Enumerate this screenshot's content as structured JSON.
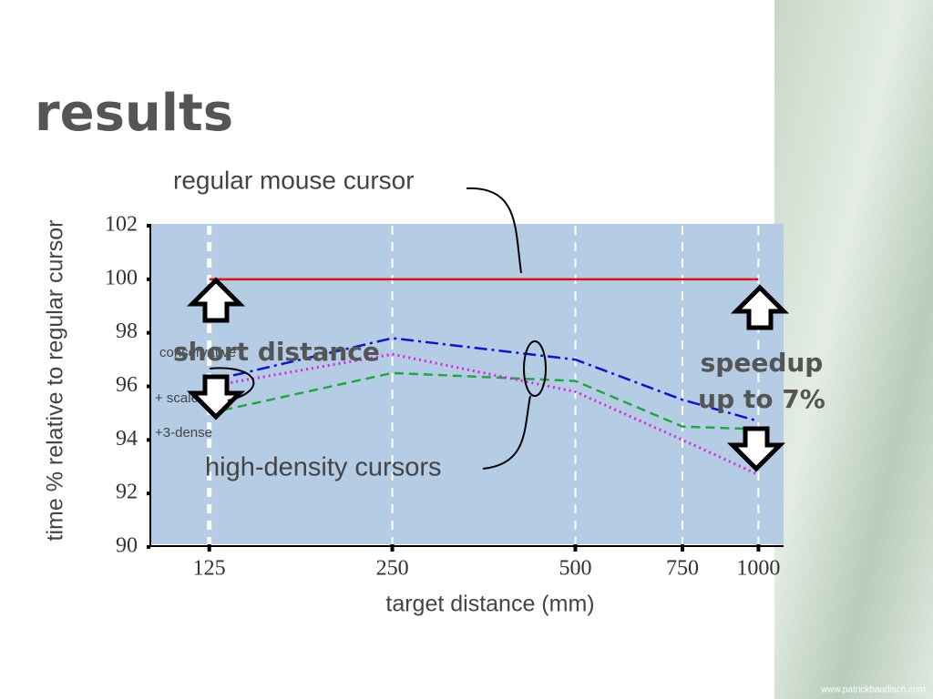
{
  "title": "results",
  "footer": "www.patrickbaudisch.com",
  "chart_data": {
    "type": "line",
    "x_label": "target distance (mm)",
    "y_label": "time % relative to regular cursor",
    "x": [
      125,
      250,
      500,
      750,
      1000
    ],
    "xlim": [
      100,
      1100
    ],
    "xticks": [
      125,
      250,
      500,
      750,
      1000
    ],
    "x_log_scale": true,
    "ylim": [
      90,
      102
    ],
    "yticks": [
      90,
      92,
      94,
      96,
      98,
      100,
      102
    ],
    "grid": true,
    "series": [
      {
        "name": "regular mouse cursor",
        "color": "#e01010",
        "style": "solid",
        "values": [
          100,
          100,
          100,
          100,
          100
        ]
      },
      {
        "name": "conservative",
        "color": "#1010d8",
        "style": "dashdot",
        "values": [
          96.2,
          97.8,
          97.0,
          95.5,
          94.7
        ]
      },
      {
        "name": "+ scale",
        "color": "#20a840",
        "style": "dashed",
        "values": [
          95.0,
          96.5,
          96.2,
          94.5,
          94.4
        ]
      },
      {
        "name": "+3-dense",
        "color": "#e020e0",
        "style": "dotted",
        "values": [
          96.0,
          97.2,
          95.8,
          94.0,
          92.7
        ]
      }
    ],
    "annotations": {
      "short": "short distance",
      "speedup": [
        "speedup",
        "up to 7%"
      ],
      "density": "high-density cursors"
    }
  }
}
